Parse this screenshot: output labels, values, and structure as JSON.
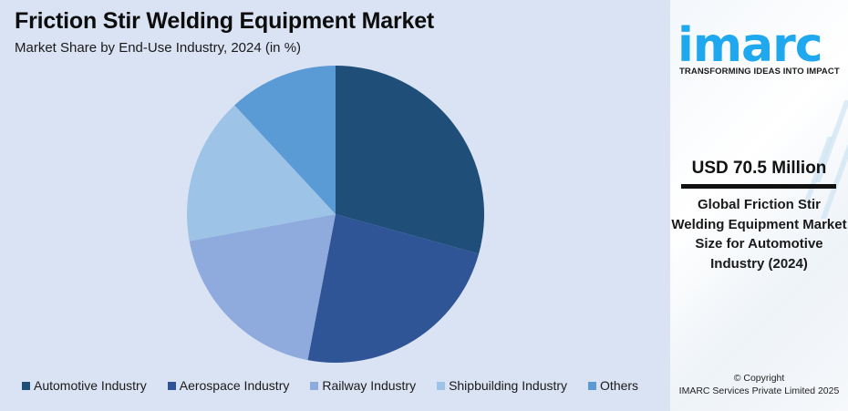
{
  "header": {
    "title": "Friction Stir Welding Equipment Market",
    "subtitle": "Market Share by End-Use Industry, 2024 (in %)"
  },
  "chart_data": {
    "type": "pie",
    "title": "Friction Stir Welding Equipment Market",
    "subtitle": "Market Share by End-Use Industry, 2024 (in %)",
    "categories": [
      "Automotive Industry",
      "Aerospace Industry",
      "Railway Industry",
      "Shipbuilding Industry",
      "Others"
    ],
    "values": [
      29.3,
      23.7,
      19.1,
      16.0,
      11.9
    ],
    "colors": [
      "#1f4e79",
      "#2f5597",
      "#8faadc",
      "#9dc3e6",
      "#5b9bd5"
    ],
    "start_angle": "12 o'clock, clockwise",
    "legend_position": "bottom"
  },
  "legend": {
    "items": [
      {
        "label": "Automotive Industry",
        "color": "#1f4e79"
      },
      {
        "label": "Aerospace Industry",
        "color": "#2f5597"
      },
      {
        "label": "Railway Industry",
        "color": "#8faadc"
      },
      {
        "label": "Shipbuilding Industry",
        "color": "#9dc3e6"
      },
      {
        "label": "Others",
        "color": "#5b9bd5"
      }
    ]
  },
  "sidebar": {
    "logo_text": "imarc",
    "tagline": "TRANSFORMING IDEAS INTO IMPACT",
    "stat_value": "USD 70.5 Million",
    "stat_description": "Global Friction Stir Welding Equipment Market Size for Automotive Industry (2024)",
    "copyright_line1": "© Copyright",
    "copyright_line2": "IMARC Services Private Limited 2025",
    "brand_color": "#1fa8ee"
  }
}
